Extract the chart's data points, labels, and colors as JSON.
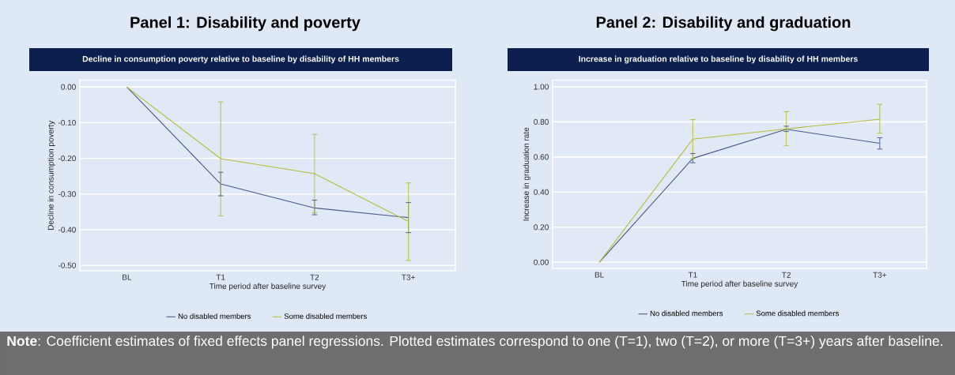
{
  "chart_data": [
    {
      "type": "line",
      "title": "Panel 1: Disability and poverty",
      "subtitle": "Decline in consumption poverty relative to baseline by disability of HH members",
      "xlabel": "Time period after baseline survey",
      "ylabel": "Decline in consumption poverty",
      "categories": [
        "BL",
        "T1",
        "T2",
        "T3+"
      ],
      "series": [
        {
          "name": "No disabled members",
          "color": "#4a5a8a",
          "values": [
            0,
            -0.272,
            -0.339,
            -0.366
          ],
          "errors": [
            null,
            [
              -0.305,
              -0.239
            ],
            [
              -0.358,
              -0.317
            ],
            [
              -0.408,
              -0.324
            ]
          ]
        },
        {
          "name": "Some disabled members",
          "color": "#b5bd3a",
          "values": [
            0,
            -0.201,
            -0.243,
            -0.377
          ],
          "errors": [
            null,
            [
              -0.361,
              -0.042
            ],
            [
              -0.352,
              -0.133
            ],
            [
              -0.486,
              -0.269
            ]
          ]
        }
      ],
      "ylim": [
        -0.515,
        0.019
      ],
      "yticks": [
        {
          "value": 0,
          "label": "0.00"
        },
        {
          "value": -0.1,
          "label": "-0.10"
        },
        {
          "value": -0.2,
          "label": "-0.20"
        },
        {
          "value": -0.3,
          "label": "-0.30"
        },
        {
          "value": -0.4,
          "label": "-0.40"
        },
        {
          "value": -0.5,
          "label": "-0.50"
        }
      ],
      "grid": "y",
      "legend": "bottom",
      "marker": "none",
      "line_style": "solid"
    },
    {
      "type": "line",
      "title": "Panel 2: Disability and graduation",
      "subtitle": "Increase in graduation relative to baseline by disability of HH members",
      "xlabel": "Time period after baseline survey",
      "ylabel": "Increase in graduation rate",
      "categories": [
        "BL",
        "T1",
        "T2",
        "T3+"
      ],
      "series": [
        {
          "name": "No disabled members",
          "color": "#4a5a8a",
          "values": [
            0,
            0.592,
            0.758,
            0.678
          ],
          "errors": [
            null,
            [
              0.567,
              0.62
            ],
            [
              0.745,
              0.775
            ],
            [
              0.645,
              0.71
            ]
          ]
        },
        {
          "name": "Some disabled members",
          "color": "#b5bd3a",
          "values": [
            0,
            0.702,
            0.76,
            0.815
          ],
          "errors": [
            null,
            [
              0.59,
              0.813
            ],
            [
              0.665,
              0.858
            ],
            [
              0.735,
              0.9
            ]
          ]
        }
      ],
      "ylim": [
        -0.035,
        1.038
      ],
      "yticks": [
        {
          "value": 0,
          "label": "0.00"
        },
        {
          "value": 0.2,
          "label": "0.20"
        },
        {
          "value": 0.4,
          "label": "0.40"
        },
        {
          "value": 0.6,
          "label": "0.60"
        },
        {
          "value": 0.8,
          "label": "0.80"
        },
        {
          "value": 1,
          "label": "1.00"
        }
      ],
      "grid": "y",
      "legend": "bottom",
      "marker": "none",
      "line_style": "solid",
      "annotations": [
        "**Note**: Coefficient estimates of fixed effects panel regressions. Plotted estimates correspond to one (T=1), two (T=2), or more (T=3+) years after baseline."
      ]
    }
  ]
}
